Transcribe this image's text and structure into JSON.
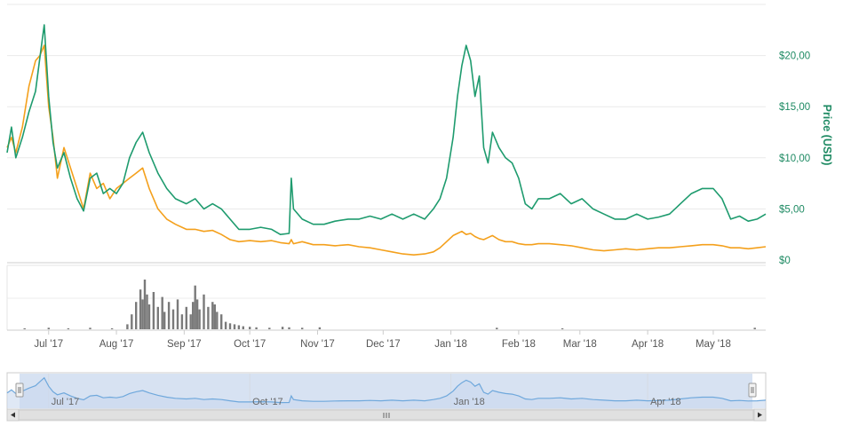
{
  "chart_data": {
    "type": "line",
    "x_domain": [
      "2017-06-12",
      "2018-05-25"
    ],
    "ylabel": "Price (USD)",
    "ylim": [
      0,
      25
    ],
    "y_ticks": [
      "$0",
      "$5,00",
      "$10,00",
      "$15,00",
      "$20,00"
    ],
    "y_tick_values": [
      0,
      5,
      10,
      15,
      20
    ],
    "grid": true,
    "series": [
      {
        "color": "#1e9b6e",
        "points": [
          [
            "2017-06-12",
            10.5
          ],
          [
            "2017-06-14",
            13.0
          ],
          [
            "2017-06-16",
            10.0
          ],
          [
            "2017-06-19",
            12.0
          ],
          [
            "2017-06-22",
            14.5
          ],
          [
            "2017-06-25",
            16.5
          ],
          [
            "2017-06-27",
            19.8
          ],
          [
            "2017-06-29",
            23.0
          ],
          [
            "2017-07-01",
            16.0
          ],
          [
            "2017-07-03",
            11.5
          ],
          [
            "2017-07-05",
            9.0
          ],
          [
            "2017-07-08",
            10.5
          ],
          [
            "2017-07-11",
            8.0
          ],
          [
            "2017-07-14",
            6.0
          ],
          [
            "2017-07-17",
            4.8
          ],
          [
            "2017-07-20",
            8.0
          ],
          [
            "2017-07-23",
            8.5
          ],
          [
            "2017-07-26",
            6.5
          ],
          [
            "2017-07-29",
            7.0
          ],
          [
            "2017-08-01",
            6.5
          ],
          [
            "2017-08-04",
            7.5
          ],
          [
            "2017-08-07",
            10.0
          ],
          [
            "2017-08-10",
            11.5
          ],
          [
            "2017-08-13",
            12.5
          ],
          [
            "2017-08-16",
            10.5
          ],
          [
            "2017-08-20",
            8.5
          ],
          [
            "2017-08-24",
            7.0
          ],
          [
            "2017-08-28",
            6.0
          ],
          [
            "2017-09-02",
            5.5
          ],
          [
            "2017-09-06",
            6.0
          ],
          [
            "2017-09-10",
            5.0
          ],
          [
            "2017-09-14",
            5.5
          ],
          [
            "2017-09-18",
            5.0
          ],
          [
            "2017-09-22",
            4.0
          ],
          [
            "2017-09-26",
            3.0
          ],
          [
            "2017-10-01",
            3.0
          ],
          [
            "2017-10-06",
            3.2
          ],
          [
            "2017-10-11",
            3.0
          ],
          [
            "2017-10-15",
            2.5
          ],
          [
            "2017-10-19",
            2.6
          ],
          [
            "2017-10-20",
            8.0
          ],
          [
            "2017-10-21",
            5.0
          ],
          [
            "2017-10-25",
            4.0
          ],
          [
            "2017-10-30",
            3.5
          ],
          [
            "2017-11-04",
            3.5
          ],
          [
            "2017-11-09",
            3.8
          ],
          [
            "2017-11-15",
            4.0
          ],
          [
            "2017-11-20",
            4.0
          ],
          [
            "2017-11-25",
            4.3
          ],
          [
            "2017-11-30",
            4.0
          ],
          [
            "2017-12-05",
            4.5
          ],
          [
            "2017-12-10",
            4.0
          ],
          [
            "2017-12-15",
            4.5
          ],
          [
            "2017-12-20",
            4.0
          ],
          [
            "2017-12-24",
            5.0
          ],
          [
            "2017-12-27",
            6.0
          ],
          [
            "2017-12-30",
            8.0
          ],
          [
            "2018-01-02",
            12.0
          ],
          [
            "2018-01-04",
            16.0
          ],
          [
            "2018-01-06",
            19.0
          ],
          [
            "2018-01-08",
            21.0
          ],
          [
            "2018-01-10",
            19.5
          ],
          [
            "2018-01-12",
            16.0
          ],
          [
            "2018-01-14",
            18.0
          ],
          [
            "2018-01-16",
            11.0
          ],
          [
            "2018-01-18",
            9.5
          ],
          [
            "2018-01-20",
            12.5
          ],
          [
            "2018-01-23",
            11.0
          ],
          [
            "2018-01-26",
            10.0
          ],
          [
            "2018-01-29",
            9.5
          ],
          [
            "2018-02-01",
            8.0
          ],
          [
            "2018-02-04",
            5.5
          ],
          [
            "2018-02-07",
            5.0
          ],
          [
            "2018-02-10",
            6.0
          ],
          [
            "2018-02-15",
            6.0
          ],
          [
            "2018-02-20",
            6.5
          ],
          [
            "2018-02-25",
            5.5
          ],
          [
            "2018-03-02",
            6.0
          ],
          [
            "2018-03-07",
            5.0
          ],
          [
            "2018-03-12",
            4.5
          ],
          [
            "2018-03-17",
            4.0
          ],
          [
            "2018-03-22",
            4.0
          ],
          [
            "2018-03-27",
            4.5
          ],
          [
            "2018-04-01",
            4.0
          ],
          [
            "2018-04-06",
            4.2
          ],
          [
            "2018-04-11",
            4.5
          ],
          [
            "2018-04-16",
            5.5
          ],
          [
            "2018-04-21",
            6.5
          ],
          [
            "2018-04-26",
            7.0
          ],
          [
            "2018-05-01",
            7.0
          ],
          [
            "2018-05-05",
            6.0
          ],
          [
            "2018-05-09",
            4.0
          ],
          [
            "2018-05-13",
            4.3
          ],
          [
            "2018-05-17",
            3.8
          ],
          [
            "2018-05-21",
            4.0
          ],
          [
            "2018-05-25",
            4.5
          ]
        ]
      },
      {
        "color": "#f4a01c",
        "points": [
          [
            "2017-06-12",
            11.0
          ],
          [
            "2017-06-14",
            12.0
          ],
          [
            "2017-06-16",
            10.5
          ],
          [
            "2017-06-19",
            13.0
          ],
          [
            "2017-06-22",
            17.0
          ],
          [
            "2017-06-25",
            19.5
          ],
          [
            "2017-06-27",
            20.0
          ],
          [
            "2017-06-29",
            21.0
          ],
          [
            "2017-07-01",
            15.0
          ],
          [
            "2017-07-03",
            12.0
          ],
          [
            "2017-07-05",
            8.0
          ],
          [
            "2017-07-08",
            11.0
          ],
          [
            "2017-07-11",
            9.0
          ],
          [
            "2017-07-14",
            7.0
          ],
          [
            "2017-07-17",
            5.0
          ],
          [
            "2017-07-20",
            8.5
          ],
          [
            "2017-07-23",
            7.0
          ],
          [
            "2017-07-26",
            7.5
          ],
          [
            "2017-07-29",
            6.0
          ],
          [
            "2017-08-01",
            7.0
          ],
          [
            "2017-08-04",
            7.5
          ],
          [
            "2017-08-07",
            8.0
          ],
          [
            "2017-08-10",
            8.5
          ],
          [
            "2017-08-13",
            9.0
          ],
          [
            "2017-08-16",
            7.0
          ],
          [
            "2017-08-20",
            5.0
          ],
          [
            "2017-08-24",
            4.0
          ],
          [
            "2017-08-28",
            3.5
          ],
          [
            "2017-09-02",
            3.0
          ],
          [
            "2017-09-06",
            3.0
          ],
          [
            "2017-09-10",
            2.8
          ],
          [
            "2017-09-14",
            2.9
          ],
          [
            "2017-09-18",
            2.5
          ],
          [
            "2017-09-22",
            2.0
          ],
          [
            "2017-09-26",
            1.8
          ],
          [
            "2017-10-01",
            1.9
          ],
          [
            "2017-10-06",
            1.8
          ],
          [
            "2017-10-11",
            1.9
          ],
          [
            "2017-10-15",
            1.7
          ],
          [
            "2017-10-19",
            1.6
          ],
          [
            "2017-10-20",
            2.0
          ],
          [
            "2017-10-21",
            1.6
          ],
          [
            "2017-10-25",
            1.8
          ],
          [
            "2017-10-30",
            1.5
          ],
          [
            "2017-11-04",
            1.5
          ],
          [
            "2017-11-09",
            1.4
          ],
          [
            "2017-11-15",
            1.5
          ],
          [
            "2017-11-20",
            1.3
          ],
          [
            "2017-11-25",
            1.2
          ],
          [
            "2017-11-30",
            1.0
          ],
          [
            "2017-12-05",
            0.8
          ],
          [
            "2017-12-10",
            0.6
          ],
          [
            "2017-12-15",
            0.5
          ],
          [
            "2017-12-20",
            0.6
          ],
          [
            "2017-12-24",
            0.8
          ],
          [
            "2017-12-27",
            1.2
          ],
          [
            "2017-12-30",
            1.8
          ],
          [
            "2018-01-02",
            2.4
          ],
          [
            "2018-01-04",
            2.6
          ],
          [
            "2018-01-06",
            2.8
          ],
          [
            "2018-01-08",
            2.5
          ],
          [
            "2018-01-10",
            2.6
          ],
          [
            "2018-01-12",
            2.3
          ],
          [
            "2018-01-14",
            2.1
          ],
          [
            "2018-01-16",
            2.0
          ],
          [
            "2018-01-18",
            2.2
          ],
          [
            "2018-01-20",
            2.4
          ],
          [
            "2018-01-23",
            2.0
          ],
          [
            "2018-01-26",
            1.8
          ],
          [
            "2018-01-29",
            1.8
          ],
          [
            "2018-02-01",
            1.6
          ],
          [
            "2018-02-04",
            1.5
          ],
          [
            "2018-02-07",
            1.5
          ],
          [
            "2018-02-10",
            1.6
          ],
          [
            "2018-02-15",
            1.6
          ],
          [
            "2018-02-20",
            1.5
          ],
          [
            "2018-02-25",
            1.4
          ],
          [
            "2018-03-02",
            1.2
          ],
          [
            "2018-03-07",
            1.0
          ],
          [
            "2018-03-12",
            0.9
          ],
          [
            "2018-03-17",
            1.0
          ],
          [
            "2018-03-22",
            1.1
          ],
          [
            "2018-03-27",
            1.0
          ],
          [
            "2018-04-01",
            1.1
          ],
          [
            "2018-04-06",
            1.2
          ],
          [
            "2018-04-11",
            1.2
          ],
          [
            "2018-04-16",
            1.3
          ],
          [
            "2018-04-21",
            1.4
          ],
          [
            "2018-04-26",
            1.5
          ],
          [
            "2018-05-01",
            1.5
          ],
          [
            "2018-05-05",
            1.4
          ],
          [
            "2018-05-09",
            1.2
          ],
          [
            "2018-05-13",
            1.2
          ],
          [
            "2018-05-17",
            1.1
          ],
          [
            "2018-05-21",
            1.2
          ],
          [
            "2018-05-25",
            1.3
          ]
        ]
      }
    ],
    "volume": {
      "color": "#7a7a7a",
      "points": [
        [
          "2017-06-20",
          0.02
        ],
        [
          "2017-07-01",
          0.03
        ],
        [
          "2017-07-10",
          0.02
        ],
        [
          "2017-07-20",
          0.03
        ],
        [
          "2017-07-30",
          0.02
        ],
        [
          "2017-08-06",
          0.1
        ],
        [
          "2017-08-08",
          0.3
        ],
        [
          "2017-08-10",
          0.55
        ],
        [
          "2017-08-12",
          0.8
        ],
        [
          "2017-08-13",
          0.6
        ],
        [
          "2017-08-14",
          1.0
        ],
        [
          "2017-08-15",
          0.7
        ],
        [
          "2017-08-16",
          0.5
        ],
        [
          "2017-08-18",
          0.75
        ],
        [
          "2017-08-20",
          0.45
        ],
        [
          "2017-08-22",
          0.65
        ],
        [
          "2017-08-23",
          0.35
        ],
        [
          "2017-08-25",
          0.55
        ],
        [
          "2017-08-27",
          0.4
        ],
        [
          "2017-08-29",
          0.6
        ],
        [
          "2017-08-31",
          0.3
        ],
        [
          "2017-09-02",
          0.45
        ],
        [
          "2017-09-04",
          0.3
        ],
        [
          "2017-09-05",
          0.55
        ],
        [
          "2017-09-06",
          0.88
        ],
        [
          "2017-09-07",
          0.6
        ],
        [
          "2017-09-08",
          0.4
        ],
        [
          "2017-09-10",
          0.7
        ],
        [
          "2017-09-12",
          0.45
        ],
        [
          "2017-09-14",
          0.55
        ],
        [
          "2017-09-15",
          0.5
        ],
        [
          "2017-09-16",
          0.35
        ],
        [
          "2017-09-18",
          0.3
        ],
        [
          "2017-09-20",
          0.15
        ],
        [
          "2017-09-22",
          0.12
        ],
        [
          "2017-09-24",
          0.1
        ],
        [
          "2017-09-26",
          0.08
        ],
        [
          "2017-09-28",
          0.06
        ],
        [
          "2017-10-01",
          0.05
        ],
        [
          "2017-10-04",
          0.04
        ],
        [
          "2017-10-10",
          0.03
        ],
        [
          "2017-10-16",
          0.05
        ],
        [
          "2017-10-19",
          0.04
        ],
        [
          "2017-10-25",
          0.03
        ],
        [
          "2017-11-02",
          0.04
        ],
        [
          "2018-01-22",
          0.03
        ],
        [
          "2018-02-21",
          0.02
        ],
        [
          "2018-05-20",
          0.03
        ]
      ]
    },
    "x_ticks": [
      "Jul '17",
      "Aug '17",
      "Sep '17",
      "Oct '17",
      "Nov '17",
      "Dec '17",
      "Jan '18",
      "Feb '18",
      "Mar '18",
      "Apr '18",
      "May '18"
    ],
    "x_tick_dates": [
      "2017-07-01",
      "2017-08-01",
      "2017-09-01",
      "2017-10-01",
      "2017-11-01",
      "2017-12-01",
      "2018-01-01",
      "2018-02-01",
      "2018-03-01",
      "2018-04-01",
      "2018-05-01"
    ],
    "navigator_ticks": [
      "Jul '17",
      "Oct '17",
      "Jan '18",
      "Apr '18"
    ],
    "navigator_tick_dates": [
      "2017-07-01",
      "2017-10-01",
      "2018-01-01",
      "2018-04-01"
    ],
    "navigator_color": "#6fa8dc",
    "navigator_fill": "#c9d8ee"
  }
}
